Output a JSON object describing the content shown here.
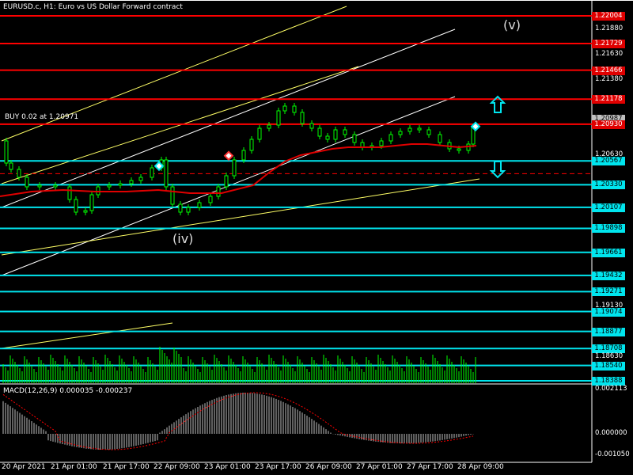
{
  "header": {
    "title": "EURUSD.c, H1:  Euro vs US Dollar Forward contract"
  },
  "trade": {
    "label": "BUY 0.02 at 1.20971"
  },
  "waves": {
    "v": "(v)",
    "iv": "(iv)"
  },
  "macd": {
    "label": "MACD(12,26,9) 0.000035 -0.000237",
    "scale": [
      "0.002113",
      "0.000000",
      "-0.001050"
    ]
  },
  "price_scale": [
    {
      "text": "1.22004",
      "bg": "#e00000",
      "fg": "#fff"
    },
    {
      "text": "1.21880",
      "bg": null,
      "fg": "#fff"
    },
    {
      "text": "1.21729",
      "bg": "#e00000",
      "fg": "#fff"
    },
    {
      "text": "1.21630",
      "bg": null,
      "fg": "#fff"
    },
    {
      "text": "1.21466",
      "bg": "#e00000",
      "fg": "#fff"
    },
    {
      "text": "1.21380",
      "bg": null,
      "fg": "#fff"
    },
    {
      "text": "1.21178",
      "bg": "#e00000",
      "fg": "#fff"
    },
    {
      "text": "1.20987",
      "bg": "#c0c0c0",
      "fg": "#000"
    },
    {
      "text": "1.20930",
      "bg": "#e00000",
      "fg": "#fff"
    },
    {
      "text": "1.20630",
      "bg": null,
      "fg": "#fff"
    },
    {
      "text": "1.20567",
      "bg": "#00e5ee",
      "fg": "#000"
    },
    {
      "text": "1.20330",
      "bg": "#00e5ee",
      "fg": "#000"
    },
    {
      "text": "1.20107",
      "bg": "#00e5ee",
      "fg": "#000"
    },
    {
      "text": "1.19898",
      "bg": "#00e5ee",
      "fg": "#000"
    },
    {
      "text": "1.19661",
      "bg": "#00e5ee",
      "fg": "#000"
    },
    {
      "text": "1.19432",
      "bg": "#00e5ee",
      "fg": "#000"
    },
    {
      "text": "1.19271",
      "bg": "#00e5ee",
      "fg": "#000"
    },
    {
      "text": "1.19130",
      "bg": null,
      "fg": "#fff"
    },
    {
      "text": "1.19074",
      "bg": "#00e5ee",
      "fg": "#000"
    },
    {
      "text": "1.18877",
      "bg": "#00e5ee",
      "fg": "#000"
    },
    {
      "text": "1.18708",
      "bg": "#00e5ee",
      "fg": "#000"
    },
    {
      "text": "1.18630",
      "bg": null,
      "fg": "#fff"
    },
    {
      "text": "1.18540",
      "bg": "#00e5ee",
      "fg": "#000"
    },
    {
      "text": "1.18388",
      "bg": "#00e5ee",
      "fg": "#000"
    }
  ],
  "resistance_levels": [
    1.22004,
    1.21729,
    1.21466,
    1.21178,
    1.2093
  ],
  "support_levels": [
    1.20567,
    1.2033,
    1.20107,
    1.19898,
    1.19661,
    1.19432,
    1.19271,
    1.19074,
    1.18877,
    1.18708,
    1.1854,
    1.18388
  ],
  "time_axis": [
    "20 Apr 2021",
    "21 Apr 01:00",
    "21 Apr 17:00",
    "22 Apr 09:00",
    "23 Apr 01:00",
    "23 Apr 17:00",
    "26 Apr 09:00",
    "27 Apr 01:00",
    "27 Apr 17:00",
    "28 Apr 09:00"
  ],
  "colors": {
    "background": "#000000",
    "resistance": "#ff0000",
    "support": "#00e5ee",
    "candles": "#00ff00",
    "ma": "#e00000",
    "trend_white": "#ffffff",
    "trend_yellow": "#ffff66",
    "macd_hist": "#c0c0c0",
    "macd_signal": "#ff0000"
  },
  "icons": [
    "up-arrow-icon",
    "down-arrow-icon",
    "buy-marker-icon",
    "sell-marker-icon"
  ]
}
